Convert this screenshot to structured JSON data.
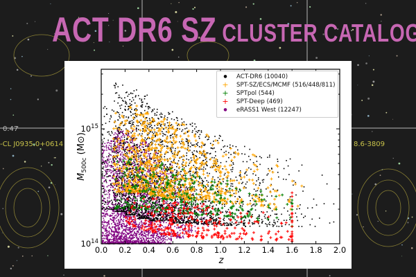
{
  "title": {
    "main": "ACT DR6 SZ",
    "sub": "CLUSTER CATALOG"
  },
  "background_labels": {
    "left_value": "0.47",
    "left_name": "-CL J0935.0+0614",
    "right_name": "8.6-3809"
  },
  "colors": {
    "title": "#c767b3",
    "background": "#1c1c1c",
    "label": "#c9c34a"
  },
  "chart_data": {
    "type": "scatter",
    "xlabel": "z",
    "ylabel": "M500c (M⊙)",
    "xlim": [
      0.0,
      2.0
    ],
    "ylim": [
      100000000000000.0,
      3300000000000000.0
    ],
    "yscale": "log",
    "grid": false,
    "legend_position": "top-right",
    "x_ticks": [
      "0.0",
      "0.2",
      "0.4",
      "0.6",
      "0.8",
      "1.0",
      "1.2",
      "1.4",
      "1.6",
      "1.8",
      "2.0"
    ],
    "y_ticks": [
      {
        "value": 100000000000000.0,
        "base": "10",
        "exp": "14"
      },
      {
        "value": 1000000000000000.0,
        "base": "10",
        "exp": "15"
      }
    ],
    "series": [
      {
        "name": "eRASS1 West (12247)",
        "color": "#800080",
        "marker": "dot",
        "count": 12247,
        "z_max": 0.9,
        "z": [
          0.05,
          0.15,
          0.25,
          0.35,
          0.45,
          0.55,
          0.65,
          0.75,
          0.85
        ],
        "log10_mass_min": [
          14.0,
          14.0,
          14.0,
          14.0,
          14.0,
          14.0,
          14.05,
          14.1,
          14.15
        ],
        "log10_mass_max": [
          14.9,
          15.0,
          15.0,
          14.9,
          14.8,
          14.7,
          14.6,
          14.5,
          14.45
        ],
        "relative_density": [
          6,
          10,
          9,
          7,
          5,
          3,
          1.5,
          0.6,
          0.3
        ]
      },
      {
        "name": "ACT-DR6 (10040)",
        "color": "#000000",
        "marker": "dot",
        "count": 10040,
        "z_max": 1.95,
        "z": [
          0.05,
          0.15,
          0.25,
          0.35,
          0.45,
          0.55,
          0.65,
          0.75,
          0.85,
          0.95,
          1.05,
          1.15,
          1.25,
          1.35,
          1.45,
          1.55,
          1.65,
          1.75,
          1.85,
          1.95
        ],
        "log10_mass_min": [
          14.3,
          14.28,
          14.25,
          14.22,
          14.2,
          14.2,
          14.18,
          14.18,
          14.17,
          14.17,
          14.16,
          14.16,
          14.15,
          14.15,
          14.15,
          14.15,
          14.15,
          14.15,
          14.15,
          14.15
        ],
        "log10_mass_max": [
          15.2,
          15.4,
          15.35,
          15.3,
          15.2,
          15.15,
          15.1,
          15.05,
          15.0,
          14.95,
          14.9,
          14.9,
          14.85,
          14.8,
          14.8,
          14.75,
          14.7,
          14.65,
          14.6,
          14.55
        ],
        "relative_density": [
          3,
          7,
          9,
          9,
          9,
          8,
          7,
          6,
          5,
          4,
          3,
          2.2,
          1.6,
          1.2,
          0.9,
          0.7,
          0.4,
          0.3,
          0.2,
          0.1
        ]
      },
      {
        "name": "SPT-SZ/ECS/MCMF (516/448/811)",
        "color": "#ffa500",
        "marker": "plus",
        "count": 1775,
        "z_max": 1.7,
        "z": [
          0.15,
          0.25,
          0.35,
          0.45,
          0.55,
          0.65,
          0.75,
          0.85,
          0.95,
          1.05,
          1.15,
          1.25,
          1.35,
          1.45,
          1.55,
          1.65
        ],
        "log10_mass_min": [
          14.45,
          14.45,
          14.45,
          14.42,
          14.4,
          14.4,
          14.38,
          14.38,
          14.36,
          14.35,
          14.35,
          14.34,
          14.32,
          14.3,
          14.3,
          14.3
        ],
        "log10_mass_max": [
          15.15,
          15.2,
          15.15,
          15.1,
          15.1,
          15.05,
          15.0,
          14.95,
          14.9,
          14.85,
          14.8,
          14.8,
          14.75,
          14.7,
          14.65,
          14.6
        ],
        "relative_density": [
          4,
          8,
          9,
          9,
          8,
          7,
          6,
          5,
          4,
          3,
          2,
          1.5,
          1,
          0.7,
          0.5,
          0.3
        ]
      },
      {
        "name": "SPTpol (544)",
        "color": "#008000",
        "marker": "plus",
        "count": 544,
        "z_max": 1.6,
        "z": [
          0.15,
          0.25,
          0.35,
          0.45,
          0.55,
          0.65,
          0.75,
          0.85,
          0.95,
          1.05,
          1.15,
          1.25,
          1.35,
          1.45,
          1.55,
          1.65
        ],
        "log10_mass_min": [
          14.3,
          14.3,
          14.3,
          14.28,
          14.28,
          14.27,
          14.26,
          14.25,
          14.25,
          14.24,
          14.22,
          14.22,
          14.2,
          14.2,
          14.2,
          14.15
        ],
        "log10_mass_max": [
          14.75,
          14.75,
          14.7,
          14.7,
          14.7,
          14.65,
          14.6,
          14.6,
          14.55,
          14.55,
          14.5,
          14.5,
          14.5,
          14.45,
          14.45,
          14.45
        ],
        "relative_density": [
          3,
          5,
          6,
          6,
          6,
          5,
          5,
          4,
          4,
          3,
          2.5,
          2,
          1.5,
          1,
          0.8,
          1.5
        ]
      },
      {
        "name": "SPT-Deep (469)",
        "color": "#ff0000",
        "marker": "plus",
        "count": 469,
        "z_max": 1.6,
        "z": [
          0.25,
          0.35,
          0.45,
          0.55,
          0.65,
          0.75,
          0.85,
          0.95,
          1.05,
          1.15,
          1.25,
          1.35,
          1.45,
          1.55,
          1.65
        ],
        "log10_mass_min": [
          14.15,
          14.12,
          14.1,
          14.08,
          14.07,
          14.06,
          14.05,
          14.05,
          14.04,
          14.04,
          14.03,
          14.03,
          14.03,
          14.03,
          14.02
        ],
        "log10_mass_max": [
          14.45,
          14.45,
          14.42,
          14.4,
          14.38,
          14.35,
          14.35,
          14.32,
          14.3,
          14.3,
          14.28,
          14.28,
          14.25,
          14.25,
          14.45
        ],
        "relative_density": [
          2,
          3,
          4,
          4,
          4,
          4,
          4,
          3.5,
          3,
          2.5,
          2,
          1.6,
          1.2,
          1,
          3
        ]
      }
    ]
  }
}
